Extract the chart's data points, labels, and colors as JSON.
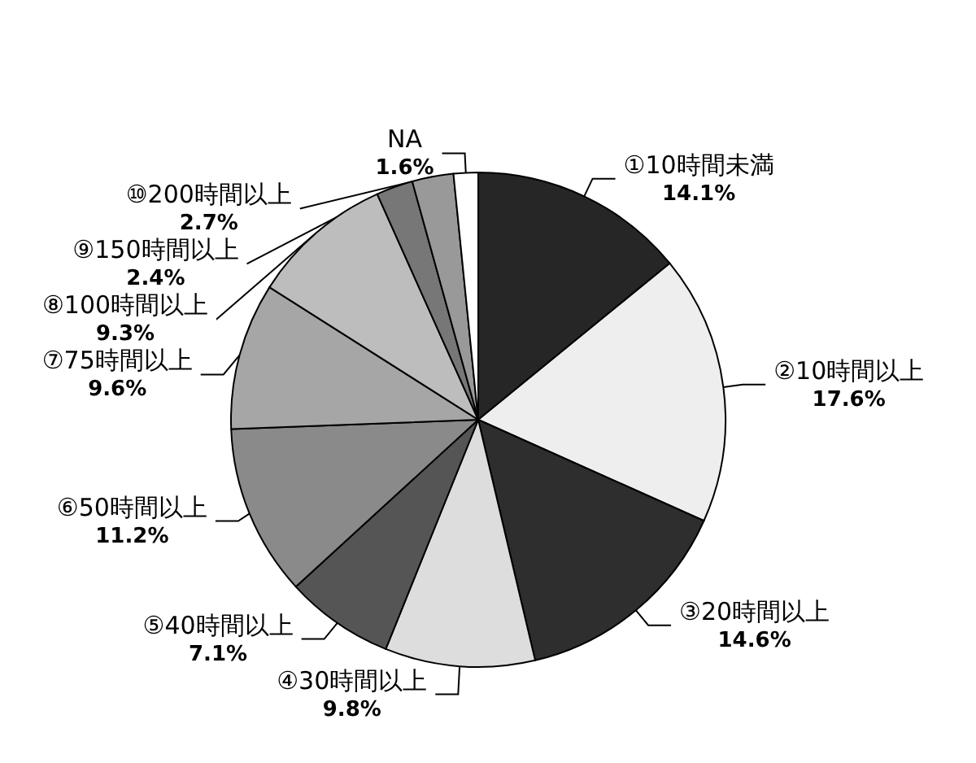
{
  "chart_data": {
    "type": "pie",
    "categories": [
      "①10時間未満",
      "②10時間以上",
      "③20時間以上",
      "④30時間以上",
      "⑤40時間以上",
      "⑥50時間以上",
      "⑦75時間以上",
      "⑧100時間以上",
      "⑨150時間以上",
      "⑩200時間以上",
      "NA"
    ],
    "values": [
      14.1,
      17.6,
      14.6,
      9.8,
      7.1,
      11.2,
      9.6,
      9.3,
      2.4,
      2.7,
      1.6
    ],
    "value_labels": [
      "14.1%",
      "17.6%",
      "14.6%",
      "9.8%",
      "7.1%",
      "11.2%",
      "9.6%",
      "9.3%",
      "2.4%",
      "2.7%",
      "1.6%"
    ],
    "colors": [
      "#262626",
      "#eeeeee",
      "#2e2e2e",
      "#dddddd",
      "#555555",
      "#8a8a8a",
      "#a6a6a6",
      "#bdbdbd",
      "#777777",
      "#999999",
      "#ffffff"
    ]
  }
}
